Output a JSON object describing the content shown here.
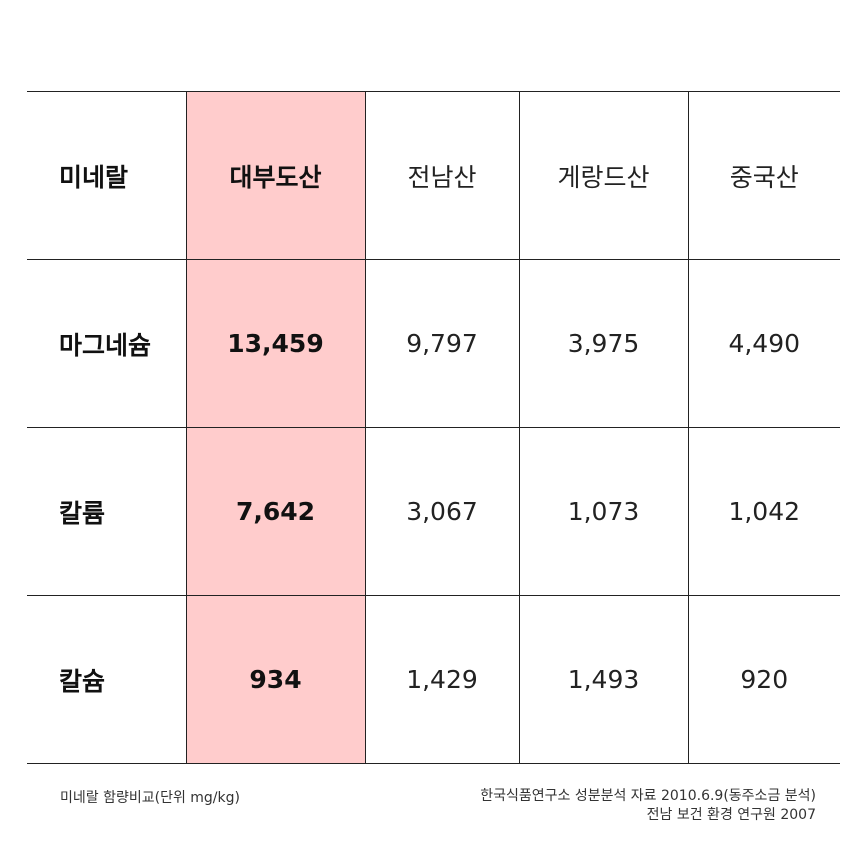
{
  "header": {
    "label": "미네랄",
    "columns": [
      "대부도산",
      "전남산",
      "게랑드산",
      "중국산"
    ]
  },
  "rows": [
    {
      "label": "마그네슘",
      "values": [
        "13,459",
        "9,797",
        "3,975",
        "4,490"
      ]
    },
    {
      "label": "칼륨",
      "values": [
        "7,642",
        "3,067",
        "1,073",
        "1,042"
      ]
    },
    {
      "label": "칼슘",
      "values": [
        "934",
        "1,429",
        "1,493",
        "920"
      ]
    }
  ],
  "footer": {
    "caption": "미네랄 함량비교(단위 mg/kg)",
    "sources": [
      "한국식품연구소 성분분석 자료 2010.6.9(동주소금 분석)",
      "전남 보건 환경 연구원 2007"
    ]
  },
  "colors": {
    "highlight": "#ffcccc",
    "border": "#222222"
  }
}
